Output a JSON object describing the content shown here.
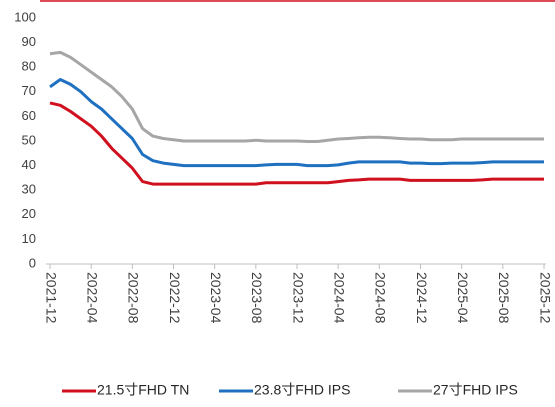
{
  "chart_data": {
    "type": "line",
    "categories": [
      "2021-12",
      null,
      null,
      null,
      "2022-04",
      null,
      null,
      null,
      "2022-08",
      null,
      null,
      null,
      "2022-12",
      null,
      null,
      null,
      "2023-04",
      null,
      null,
      null,
      "2023-08",
      null,
      null,
      null,
      "2023-12",
      null,
      null,
      null,
      "2024-04",
      null,
      null,
      null,
      "2024-08",
      null,
      null,
      null,
      "2024-12",
      null,
      null,
      null,
      "2025-04",
      null,
      null,
      null,
      "2025-08",
      null,
      null,
      null,
      "2025-12"
    ],
    "series": [
      {
        "name": "21.5寸FHD TN",
        "color": "#d0101e",
        "values": [
          65.5,
          64.5,
          62,
          59,
          56,
          52,
          47,
          43,
          39,
          33.5,
          32.5,
          32.5,
          32.5,
          32.5,
          32.5,
          32.5,
          32.5,
          32.5,
          32.5,
          32.5,
          32.5,
          33,
          33,
          33,
          33,
          33,
          33,
          33,
          33.5,
          34,
          34.2,
          34.5,
          34.5,
          34.5,
          34.5,
          34,
          34,
          34,
          34,
          34,
          34,
          34,
          34.2,
          34.5,
          34.5,
          34.5,
          34.5,
          34.5,
          34.5
        ]
      },
      {
        "name": "23.8寸FHD IPS",
        "color": "#1f70c1",
        "values": [
          72,
          75,
          73,
          70,
          66,
          63,
          59,
          55,
          51,
          44.5,
          42,
          41,
          40.5,
          40,
          40,
          40,
          40,
          40,
          40,
          40,
          40,
          40.3,
          40.5,
          40.5,
          40.5,
          40,
          40,
          40,
          40.3,
          41,
          41.5,
          41.5,
          41.5,
          41.5,
          41.5,
          41,
          41,
          40.8,
          40.8,
          41,
          41,
          41,
          41.2,
          41.5,
          41.5,
          41.5,
          41.5,
          41.5,
          41.5
        ]
      },
      {
        "name": "27寸FHD IPS",
        "color": "#a6a6a6",
        "values": [
          85.5,
          86,
          84,
          81,
          78,
          75,
          72,
          68,
          63,
          55,
          52,
          51,
          50.5,
          50,
          50,
          50,
          50,
          50,
          50,
          50,
          50.3,
          50,
          50,
          50,
          50,
          49.8,
          49.8,
          50.3,
          50.8,
          51,
          51.3,
          51.5,
          51.5,
          51.3,
          51,
          50.8,
          50.8,
          50.5,
          50.5,
          50.5,
          50.8,
          50.8,
          50.8,
          50.8,
          50.8,
          50.8,
          50.8,
          50.8,
          50.8
        ]
      }
    ],
    "ylim": [
      0,
      100
    ],
    "yticks": [
      0,
      10,
      20,
      30,
      40,
      50,
      60,
      70,
      80,
      90,
      100
    ],
    "legend": "bottom"
  }
}
